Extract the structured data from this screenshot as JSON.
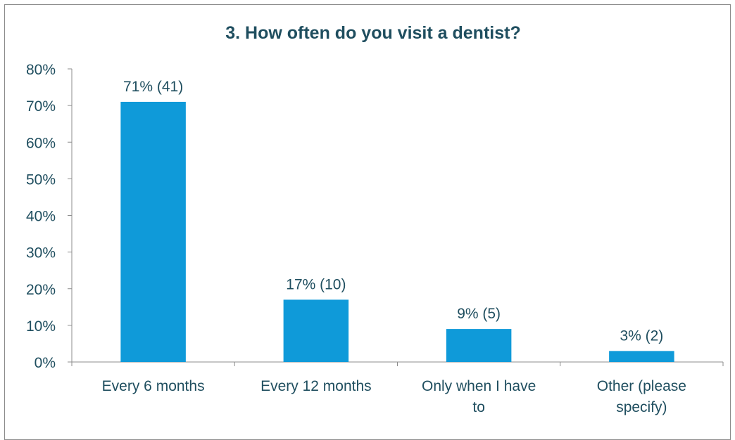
{
  "chart_data": {
    "type": "bar",
    "title": "3. How often do you visit a dentist?",
    "categories": [
      [
        "Every 6 months"
      ],
      [
        "Every 12 months"
      ],
      [
        "Only when I have",
        "to"
      ],
      [
        "Other (please",
        "specify)"
      ]
    ],
    "values": [
      71,
      17,
      9,
      3
    ],
    "data_labels": [
      "71% (41)",
      "17% (10)",
      "9% (5)",
      "3% (2)"
    ],
    "ylim": [
      0,
      80
    ],
    "yticks": [
      "0%",
      "10%",
      "20%",
      "30%",
      "40%",
      "50%",
      "60%",
      "70%",
      "80%"
    ],
    "xlabel": "",
    "ylabel": "",
    "bar_color": "#0f9ad9",
    "text_color": "#1f4e5f",
    "axis_color": "#8c8c8c",
    "grid": false,
    "legend": "none"
  }
}
